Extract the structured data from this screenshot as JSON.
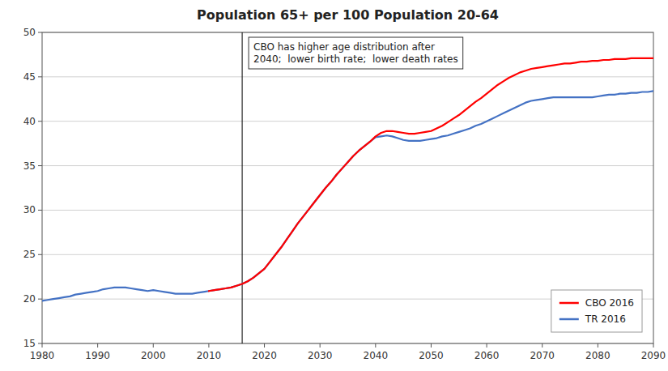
{
  "chart_data": {
    "type": "line",
    "title": "Population 65+ per 100 Population 20-64",
    "xlim": [
      1980,
      2090
    ],
    "ylim": [
      15,
      50
    ],
    "xticks": [
      1980,
      1990,
      2000,
      2010,
      2020,
      2030,
      2040,
      2050,
      2060,
      2070,
      2080,
      2090
    ],
    "yticks": [
      15,
      20,
      25,
      30,
      35,
      40,
      45,
      50
    ],
    "grid": true,
    "legend": "lower right",
    "vline": 2016,
    "annotation": "CBO has higher age distribution after\n2040;  lower birth rate;  lower death rates",
    "series": [
      {
        "name": "CBO 2016",
        "color": "#FF0000",
        "x": [
          2010,
          2011,
          2012,
          2013,
          2014,
          2015,
          2016,
          2017,
          2018,
          2019,
          2020,
          2021,
          2022,
          2023,
          2024,
          2025,
          2026,
          2027,
          2028,
          2029,
          2030,
          2031,
          2032,
          2033,
          2034,
          2035,
          2036,
          2037,
          2038,
          2039,
          2040,
          2041,
          2042,
          2043,
          2044,
          2045,
          2046,
          2047,
          2048,
          2049,
          2050,
          2051,
          2052,
          2053,
          2054,
          2055,
          2056,
          2057,
          2058,
          2059,
          2060,
          2061,
          2062,
          2063,
          2064,
          2065,
          2066,
          2067,
          2068,
          2069,
          2070,
          2071,
          2072,
          2073,
          2074,
          2075,
          2076,
          2077,
          2078,
          2079,
          2080,
          2081,
          2082,
          2083,
          2084,
          2085,
          2086,
          2087,
          2088,
          2089,
          2090
        ],
        "values": [
          20.9,
          21.0,
          21.1,
          21.2,
          21.3,
          21.5,
          21.7,
          22.0,
          22.4,
          22.9,
          23.4,
          24.2,
          25.0,
          25.8,
          26.7,
          27.6,
          28.5,
          29.3,
          30.1,
          30.9,
          31.7,
          32.5,
          33.2,
          34.0,
          34.7,
          35.4,
          36.1,
          36.7,
          37.2,
          37.7,
          38.3,
          38.7,
          38.9,
          38.9,
          38.8,
          38.7,
          38.6,
          38.6,
          38.7,
          38.8,
          38.9,
          39.2,
          39.5,
          39.9,
          40.3,
          40.7,
          41.2,
          41.7,
          42.2,
          42.6,
          43.1,
          43.6,
          44.1,
          44.5,
          44.9,
          45.2,
          45.5,
          45.7,
          45.9,
          46.0,
          46.1,
          46.2,
          46.3,
          46.4,
          46.5,
          46.5,
          46.6,
          46.7,
          46.7,
          46.8,
          46.8,
          46.9,
          46.9,
          47.0,
          47.0,
          47.0,
          47.1,
          47.1,
          47.1,
          47.1,
          47.1
        ]
      },
      {
        "name": "TR 2016",
        "color": "#4472C4",
        "x": [
          1980,
          1981,
          1982,
          1983,
          1984,
          1985,
          1986,
          1987,
          1988,
          1989,
          1990,
          1991,
          1992,
          1993,
          1994,
          1995,
          1996,
          1997,
          1998,
          1999,
          2000,
          2001,
          2002,
          2003,
          2004,
          2005,
          2006,
          2007,
          2008,
          2009,
          2010,
          2011,
          2012,
          2013,
          2014,
          2015,
          2016,
          2017,
          2018,
          2019,
          2020,
          2021,
          2022,
          2023,
          2024,
          2025,
          2026,
          2027,
          2028,
          2029,
          2030,
          2031,
          2032,
          2033,
          2034,
          2035,
          2036,
          2037,
          2038,
          2039,
          2040,
          2041,
          2042,
          2043,
          2044,
          2045,
          2046,
          2047,
          2048,
          2049,
          2050,
          2051,
          2052,
          2053,
          2054,
          2055,
          2056,
          2057,
          2058,
          2059,
          2060,
          2061,
          2062,
          2063,
          2064,
          2065,
          2066,
          2067,
          2068,
          2069,
          2070,
          2071,
          2072,
          2073,
          2074,
          2075,
          2076,
          2077,
          2078,
          2079,
          2080,
          2081,
          2082,
          2083,
          2084,
          2085,
          2086,
          2087,
          2088,
          2089,
          2090
        ],
        "values": [
          19.8,
          19.9,
          20.0,
          20.1,
          20.2,
          20.3,
          20.5,
          20.6,
          20.7,
          20.8,
          20.9,
          21.1,
          21.2,
          21.3,
          21.3,
          21.3,
          21.2,
          21.1,
          21.0,
          20.9,
          21.0,
          20.9,
          20.8,
          20.7,
          20.6,
          20.6,
          20.6,
          20.6,
          20.7,
          20.8,
          20.9,
          21.0,
          21.1,
          21.2,
          21.3,
          21.5,
          21.7,
          22.0,
          22.4,
          22.9,
          23.4,
          24.2,
          25.0,
          25.8,
          26.7,
          27.6,
          28.5,
          29.3,
          30.1,
          30.9,
          31.7,
          32.5,
          33.2,
          34.0,
          34.7,
          35.4,
          36.1,
          36.7,
          37.2,
          37.7,
          38.2,
          38.3,
          38.4,
          38.3,
          38.1,
          37.9,
          37.8,
          37.8,
          37.8,
          37.9,
          38.0,
          38.1,
          38.3,
          38.4,
          38.6,
          38.8,
          39.0,
          39.2,
          39.5,
          39.7,
          40.0,
          40.3,
          40.6,
          40.9,
          41.2,
          41.5,
          41.8,
          42.1,
          42.3,
          42.4,
          42.5,
          42.6,
          42.7,
          42.7,
          42.7,
          42.7,
          42.7,
          42.7,
          42.7,
          42.7,
          42.8,
          42.9,
          43.0,
          43.0,
          43.1,
          43.1,
          43.2,
          43.2,
          43.3,
          43.3,
          43.4
        ]
      }
    ]
  }
}
